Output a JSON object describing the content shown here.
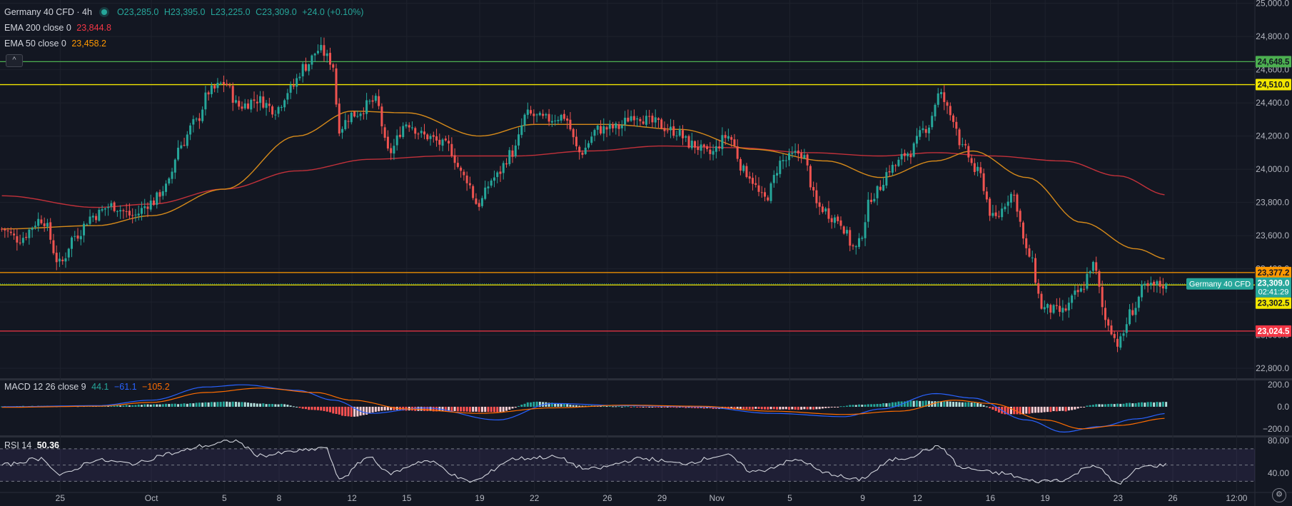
{
  "header": {
    "symbol": "Germany 40 CFD · 4h",
    "status_color": "#26a69a",
    "ohlc": {
      "open": "O23,285.0",
      "high": "H23,395.0",
      "low": "L23,225.0",
      "close": "C23,309.0",
      "change": "+24.0 (+0.10%)"
    },
    "ema200_label": "EMA 200 close 0",
    "ema200_value": "23,844.8",
    "ema50_label": "EMA 50 close 0",
    "ema50_value": "23,458.2",
    "collapse_icon": "chevron-up-icon",
    "collapse_glyph": "^"
  },
  "price_label_text": "Germany 40 CFD",
  "settings_icon": "gear-icon",
  "settings_glyph": "⚙",
  "colors": {
    "up": "#26a69a",
    "down": "#ef5350",
    "ema200": "#c2313a",
    "ema50": "#d68a1a",
    "macd_line": "#2962ff",
    "signal_line": "#ff6d00",
    "rsi_line": "#d1d4dc",
    "green_level": "#4caf50",
    "yellow_level": "#f2e600",
    "orange_level": "#ff9800",
    "red_level": "#f23645"
  },
  "chart_data": [
    {
      "type": "candlestick",
      "title": "Germany 40 CFD · 4h",
      "y_ticks": [
        "25,000.0",
        "24,800.0",
        "24,600.0",
        "24,400.0",
        "24,200.0",
        "24,000.0",
        "23,800.0",
        "23,600.0",
        "23,400.0",
        "23,200.0",
        "23,000.0",
        "22,800.0"
      ],
      "y_tick_values": [
        25000,
        24800,
        24600,
        24400,
        24200,
        24000,
        23800,
        23600,
        23400,
        23200,
        23000,
        22800
      ],
      "ylim": [
        22740,
        25020
      ],
      "x_labels": [
        "25",
        "Oct",
        "5",
        "8",
        "12",
        "15",
        "19",
        "22",
        "26",
        "29",
        "Nov",
        "5",
        "9",
        "12",
        "16",
        "19",
        "23",
        "26",
        "12:00"
      ],
      "x_label_days": [
        -5,
        0,
        4,
        7,
        11,
        14,
        18,
        21,
        25,
        28,
        31,
        35,
        39,
        42,
        46,
        49,
        53,
        56,
        59.5
      ],
      "x_range_days": [
        -8.3,
        60.5
      ],
      "candle_keypoints": [
        {
          "t": -8.2,
          "p": 23640
        },
        {
          "t": -7.3,
          "p": 23580
        },
        {
          "t": -6.0,
          "p": 23700
        },
        {
          "t": -5.0,
          "p": 23430
        },
        {
          "t": -4.2,
          "p": 23600
        },
        {
          "t": -3.2,
          "p": 23720
        },
        {
          "t": -2.2,
          "p": 23780
        },
        {
          "t": -1.0,
          "p": 23720
        },
        {
          "t": 0.0,
          "p": 23800
        },
        {
          "t": 0.8,
          "p": 23890
        },
        {
          "t": 1.6,
          "p": 24150
        },
        {
          "t": 2.4,
          "p": 24280
        },
        {
          "t": 3.2,
          "p": 24470
        },
        {
          "t": 4.0,
          "p": 24520
        },
        {
          "t": 4.8,
          "p": 24380
        },
        {
          "t": 5.8,
          "p": 24420
        },
        {
          "t": 6.8,
          "p": 24360
        },
        {
          "t": 7.6,
          "p": 24480
        },
        {
          "t": 8.4,
          "p": 24620
        },
        {
          "t": 9.2,
          "p": 24720
        },
        {
          "t": 9.9,
          "p": 24650
        },
        {
          "t": 10.3,
          "p": 24250
        },
        {
          "t": 11.0,
          "p": 24330
        },
        {
          "t": 12.3,
          "p": 24410
        },
        {
          "t": 13.0,
          "p": 24100
        },
        {
          "t": 14.0,
          "p": 24280
        },
        {
          "t": 15.0,
          "p": 24200
        },
        {
          "t": 16.2,
          "p": 24140
        },
        {
          "t": 17.2,
          "p": 23950
        },
        {
          "t": 17.9,
          "p": 23790
        },
        {
          "t": 18.8,
          "p": 23950
        },
        {
          "t": 19.8,
          "p": 24100
        },
        {
          "t": 20.6,
          "p": 24330
        },
        {
          "t": 21.6,
          "p": 24300
        },
        {
          "t": 22.6,
          "p": 24320
        },
        {
          "t": 23.5,
          "p": 24100
        },
        {
          "t": 24.5,
          "p": 24240
        },
        {
          "t": 25.5,
          "p": 24250
        },
        {
          "t": 26.5,
          "p": 24330
        },
        {
          "t": 27.5,
          "p": 24280
        },
        {
          "t": 28.7,
          "p": 24230
        },
        {
          "t": 29.6,
          "p": 24150
        },
        {
          "t": 30.6,
          "p": 24090
        },
        {
          "t": 31.6,
          "p": 24200
        },
        {
          "t": 32.6,
          "p": 23980
        },
        {
          "t": 33.6,
          "p": 23820
        },
        {
          "t": 34.6,
          "p": 24050
        },
        {
          "t": 35.6,
          "p": 24100
        },
        {
          "t": 36.6,
          "p": 23770
        },
        {
          "t": 37.6,
          "p": 23700
        },
        {
          "t": 38.6,
          "p": 23520
        },
        {
          "t": 39.6,
          "p": 23850
        },
        {
          "t": 40.6,
          "p": 24010
        },
        {
          "t": 41.5,
          "p": 24100
        },
        {
          "t": 42.5,
          "p": 24250
        },
        {
          "t": 43.2,
          "p": 24450
        },
        {
          "t": 43.9,
          "p": 24320
        },
        {
          "t": 44.5,
          "p": 24120
        },
        {
          "t": 45.3,
          "p": 23980
        },
        {
          "t": 46.2,
          "p": 23700
        },
        {
          "t": 47.2,
          "p": 23850
        },
        {
          "t": 48.1,
          "p": 23480
        },
        {
          "t": 48.9,
          "p": 23160
        },
        {
          "t": 49.9,
          "p": 23140
        },
        {
          "t": 50.9,
          "p": 23260
        },
        {
          "t": 51.6,
          "p": 23420
        },
        {
          "t": 52.4,
          "p": 23080
        },
        {
          "t": 53.0,
          "p": 22950
        },
        {
          "t": 53.8,
          "p": 23150
        },
        {
          "t": 54.4,
          "p": 23280
        },
        {
          "t": 55.2,
          "p": 23300
        },
        {
          "t": 55.7,
          "p": 23309
        }
      ],
      "ema50_keypoints": [
        {
          "t": -8.2,
          "p": 23640
        },
        {
          "t": -3,
          "p": 23660
        },
        {
          "t": 0,
          "p": 23720
        },
        {
          "t": 4,
          "p": 23880
        },
        {
          "t": 8,
          "p": 24200
        },
        {
          "t": 11,
          "p": 24350
        },
        {
          "t": 14,
          "p": 24340
        },
        {
          "t": 18,
          "p": 24200
        },
        {
          "t": 21,
          "p": 24270
        },
        {
          "t": 25,
          "p": 24270
        },
        {
          "t": 29,
          "p": 24240
        },
        {
          "t": 33,
          "p": 24120
        },
        {
          "t": 37,
          "p": 24050
        },
        {
          "t": 40,
          "p": 23950
        },
        {
          "t": 43,
          "p": 24050
        },
        {
          "t": 45,
          "p": 24110
        },
        {
          "t": 48,
          "p": 23950
        },
        {
          "t": 51,
          "p": 23680
        },
        {
          "t": 54,
          "p": 23520
        },
        {
          "t": 55.7,
          "p": 23458
        }
      ],
      "ema200_keypoints": [
        {
          "t": -8.2,
          "p": 23840
        },
        {
          "t": -3,
          "p": 23770
        },
        {
          "t": 0,
          "p": 23790
        },
        {
          "t": 4,
          "p": 23880
        },
        {
          "t": 8,
          "p": 23990
        },
        {
          "t": 12,
          "p": 24060
        },
        {
          "t": 16,
          "p": 24080
        },
        {
          "t": 20,
          "p": 24080
        },
        {
          "t": 24,
          "p": 24110
        },
        {
          "t": 28,
          "p": 24140
        },
        {
          "t": 32,
          "p": 24130
        },
        {
          "t": 36,
          "p": 24100
        },
        {
          "t": 40,
          "p": 24080
        },
        {
          "t": 43,
          "p": 24100
        },
        {
          "t": 46,
          "p": 24080
        },
        {
          "t": 50,
          "p": 24050
        },
        {
          "t": 53,
          "p": 23960
        },
        {
          "t": 55.7,
          "p": 23845
        }
      ],
      "horizontal_levels": [
        {
          "price": 24648.5,
          "label": "24,648.5",
          "color": "#4caf50",
          "dashed": false
        },
        {
          "price": 24510.0,
          "label": "24,510.0",
          "color": "#f2e600",
          "dashed": false
        },
        {
          "price": 23377.2,
          "label": "23,377.2",
          "color": "#ff9800",
          "dashed": false
        },
        {
          "price": 23302.5,
          "label": "23,302.5",
          "color": "#f2e600",
          "dashed": false
        },
        {
          "price": 23024.5,
          "label": "23,024.5",
          "color": "#f23645",
          "dashed": false
        }
      ],
      "current_price": {
        "price": 23309.0,
        "label": "23,309.0",
        "countdown": "02:41:29",
        "color": "#26a69a"
      }
    },
    {
      "type": "macd",
      "title": "MACD 12 26 close 9",
      "values": [
        "44.1",
        "−61.1",
        "−105.2"
      ],
      "y_ticks": [
        "200.0",
        "0.0",
        "−200.0"
      ],
      "y_tick_values": [
        200,
        0,
        -200
      ],
      "ylim": [
        -260,
        240
      ],
      "macd_keypoints": [
        {
          "t": -8.2,
          "v": 0
        },
        {
          "t": -3,
          "v": 10
        },
        {
          "t": 0,
          "v": 60
        },
        {
          "t": 3,
          "v": 180
        },
        {
          "t": 5,
          "v": 200
        },
        {
          "t": 8,
          "v": 150
        },
        {
          "t": 10,
          "v": 60
        },
        {
          "t": 12,
          "v": -60
        },
        {
          "t": 15,
          "v": -10
        },
        {
          "t": 19,
          "v": -120
        },
        {
          "t": 22,
          "v": 30
        },
        {
          "t": 26,
          "v": 10
        },
        {
          "t": 30,
          "v": 0
        },
        {
          "t": 34,
          "v": -60
        },
        {
          "t": 38,
          "v": -90
        },
        {
          "t": 40,
          "v": -20
        },
        {
          "t": 43,
          "v": 120
        },
        {
          "t": 45,
          "v": 80
        },
        {
          "t": 48,
          "v": -120
        },
        {
          "t": 50,
          "v": -230
        },
        {
          "t": 52,
          "v": -180
        },
        {
          "t": 54,
          "v": -110
        },
        {
          "t": 55.7,
          "v": -61
        }
      ],
      "signal_keypoints": [
        {
          "t": -8.2,
          "v": -5
        },
        {
          "t": -3,
          "v": 5
        },
        {
          "t": 0,
          "v": 40
        },
        {
          "t": 3,
          "v": 130
        },
        {
          "t": 6,
          "v": 170
        },
        {
          "t": 9,
          "v": 130
        },
        {
          "t": 11,
          "v": 60
        },
        {
          "t": 14,
          "v": -20
        },
        {
          "t": 18,
          "v": -60
        },
        {
          "t": 22,
          "v": -10
        },
        {
          "t": 26,
          "v": 15
        },
        {
          "t": 30,
          "v": 5
        },
        {
          "t": 34,
          "v": -40
        },
        {
          "t": 38,
          "v": -70
        },
        {
          "t": 41,
          "v": -40
        },
        {
          "t": 44,
          "v": 60
        },
        {
          "t": 46,
          "v": 30
        },
        {
          "t": 49,
          "v": -120
        },
        {
          "t": 51,
          "v": -200
        },
        {
          "t": 53,
          "v": -170
        },
        {
          "t": 55.7,
          "v": -105
        }
      ],
      "hist_keypoints": [
        {
          "t": -8.2,
          "v": 5
        },
        {
          "t": -3,
          "v": 8
        },
        {
          "t": 1,
          "v": 25
        },
        {
          "t": 4,
          "v": 45
        },
        {
          "t": 7,
          "v": 25
        },
        {
          "t": 9,
          "v": -30
        },
        {
          "t": 11,
          "v": -90
        },
        {
          "t": 13,
          "v": -30
        },
        {
          "t": 16,
          "v": -40
        },
        {
          "t": 19,
          "v": -50
        },
        {
          "t": 21,
          "v": 45
        },
        {
          "t": 24,
          "v": 10
        },
        {
          "t": 28,
          "v": -5
        },
        {
          "t": 32,
          "v": -20
        },
        {
          "t": 36,
          "v": -25
        },
        {
          "t": 39,
          "v": 20
        },
        {
          "t": 42,
          "v": 55
        },
        {
          "t": 45,
          "v": 40
        },
        {
          "t": 47,
          "v": -70
        },
        {
          "t": 50,
          "v": -40
        },
        {
          "t": 52,
          "v": 25
        },
        {
          "t": 55.7,
          "v": 44
        }
      ]
    },
    {
      "type": "line",
      "title": "RSI 14",
      "value": "50.36",
      "y_ticks": [
        "80.00",
        "40.00"
      ],
      "y_tick_values": [
        80,
        40
      ],
      "band": [
        30,
        70
      ],
      "midline": 50,
      "ylim": [
        18,
        84
      ],
      "rsi_keypoints": [
        {
          "t": -8.2,
          "v": 50
        },
        {
          "t": -6,
          "v": 58
        },
        {
          "t": -5,
          "v": 38
        },
        {
          "t": -3,
          "v": 56
        },
        {
          "t": -1,
          "v": 52
        },
        {
          "t": 1,
          "v": 64
        },
        {
          "t": 3,
          "v": 74
        },
        {
          "t": 4.5,
          "v": 80
        },
        {
          "t": 6,
          "v": 62
        },
        {
          "t": 8.5,
          "v": 68
        },
        {
          "t": 9.5,
          "v": 72
        },
        {
          "t": 10.3,
          "v": 34
        },
        {
          "t": 12,
          "v": 60
        },
        {
          "t": 13,
          "v": 40
        },
        {
          "t": 15,
          "v": 55
        },
        {
          "t": 17.5,
          "v": 30
        },
        {
          "t": 20,
          "v": 58
        },
        {
          "t": 22,
          "v": 60
        },
        {
          "t": 24,
          "v": 45
        },
        {
          "t": 27,
          "v": 58
        },
        {
          "t": 29,
          "v": 52
        },
        {
          "t": 31.5,
          "v": 62
        },
        {
          "t": 33,
          "v": 42
        },
        {
          "t": 35.5,
          "v": 56
        },
        {
          "t": 37,
          "v": 40
        },
        {
          "t": 38.6,
          "v": 32
        },
        {
          "t": 41,
          "v": 58
        },
        {
          "t": 43.2,
          "v": 72
        },
        {
          "t": 44.5,
          "v": 46
        },
        {
          "t": 46.5,
          "v": 40
        },
        {
          "t": 48.5,
          "v": 30
        },
        {
          "t": 50,
          "v": 32
        },
        {
          "t": 51.6,
          "v": 50
        },
        {
          "t": 53,
          "v": 28
        },
        {
          "t": 54.4,
          "v": 48
        },
        {
          "t": 55.7,
          "v": 50.36
        }
      ]
    }
  ]
}
